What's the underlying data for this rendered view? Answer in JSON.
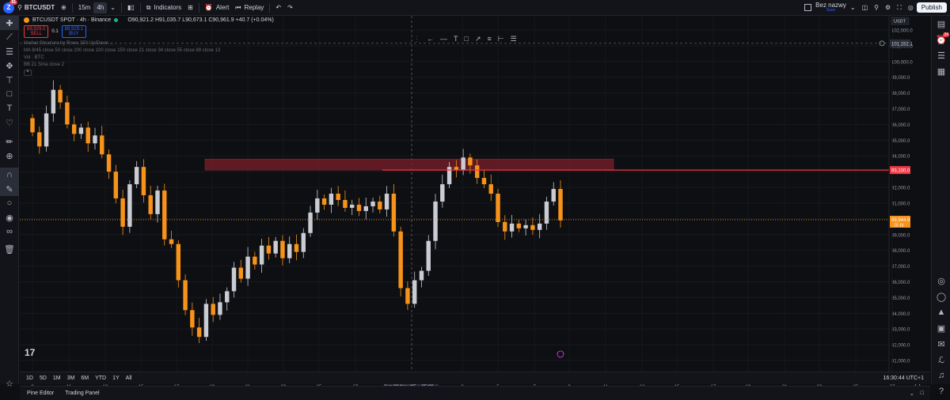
{
  "topbar": {
    "notification_count": "61",
    "symbol": "BTCUSDT",
    "intervals": [
      "15m",
      "4h"
    ],
    "active_interval": "4h",
    "indicators_label": "Indicators",
    "alert_label": "Alert",
    "replay_label": "Replay",
    "layout_name": "Bez nazwy",
    "layout_sub": "Save",
    "publish_label": "Publish"
  },
  "legend": {
    "title": "BTCUSDT SPOT · 4h · Binance",
    "ohlc": "O90,921.2 H91,035.7 L90,673.1 C90,961.9 +40.7 (+0.04%)",
    "sell_price": "89,929.0",
    "sell_label": "SELL",
    "spread": "0.1",
    "buy_price": "89,929.1",
    "buy_label": "BUY",
    "indicator_lines": [
      "Market Structure by Rows 150 Up/Down ...",
      "MA 8/45 close 50 close 200 close 100 close 150 close 21 close 34 close 55 close 89 close 13",
      "Vol · BTC",
      "BB 21 Sma close 2"
    ]
  },
  "chart_data": {
    "type": "candlestick",
    "x_tick_labels": [
      "9",
      "11",
      "13",
      "15",
      "17",
      "19",
      "21",
      "23",
      "25",
      "27",
      "Sun 30 Nov '25",
      "05:00",
      "3",
      "5",
      "7",
      "9",
      "11",
      "13",
      "15",
      "17",
      "19",
      "21",
      "23",
      "25",
      "27"
    ],
    "y_tick_labels": [
      "102,000.0",
      "101,000.0",
      "100,000.0",
      "99,000.0",
      "98,000.0",
      "97,000.0",
      "96,000.0",
      "95,000.0",
      "94,000.0",
      "93,000.0",
      "92,000.0",
      "91,000.0",
      "90,000.0",
      "89,000.0",
      "88,000.0",
      "87,000.0",
      "86,000.0",
      "85,000.0",
      "84,000.0",
      "83,000.0",
      "82,000.0",
      "81,000.0"
    ],
    "ylim": [
      80500,
      102500
    ],
    "crosshair_price": "101,152.1",
    "resistance_line_price": "93,100.0",
    "last_price": "89,944.9",
    "last_price_countdown": "25:16",
    "resistance_zone": [
      93,
      100,
      93800
    ],
    "close_path": [
      95500,
      94600,
      96700,
      98200,
      97400,
      96000,
      95400,
      95800,
      94800,
      95300,
      94100,
      93000,
      91300,
      89500,
      92200,
      93300,
      91500,
      90300,
      91800,
      88700,
      88400,
      86100,
      84200,
      83100,
      82500,
      84600,
      83900,
      84700,
      85400,
      86900,
      86200,
      87600,
      87100,
      88300,
      87800,
      88600,
      87500,
      88400,
      87900,
      89100,
      90400,
      91300,
      90900,
      91600,
      91200,
      90700,
      90900,
      90500,
      90800,
      91100,
      90600,
      91600,
      89200,
      85600,
      84600,
      86100,
      86700,
      88600,
      91100,
      92200,
      93300,
      93100,
      93900,
      93400,
      92600,
      92200,
      91600,
      89800,
      89200,
      89700,
      89400,
      89600,
      89300,
      89700,
      91100,
      91900,
      89900
    ],
    "ma_label_spread": "0.1"
  },
  "timeframes": [
    "1D",
    "5D",
    "1M",
    "3M",
    "6M",
    "YTD",
    "1Y",
    "All"
  ],
  "clock": "16:30:44 UTC+1",
  "bottom_panels": [
    "Pine Editor",
    "Trading Panel"
  ],
  "colors": {
    "up": "#c9ccd3",
    "down": "#f7931a",
    "resistance": "#f23645",
    "zone": "#7a1e2b",
    "accent": "#2962ff",
    "last_price_bg": "#f7931a"
  },
  "drawing_toolbar": [
    "arrow-left-icon",
    "horizontal-line-icon",
    "text-icon",
    "rectangle-icon",
    "trendline-icon",
    "channel-icon",
    "measure-icon",
    "settings-icon"
  ]
}
